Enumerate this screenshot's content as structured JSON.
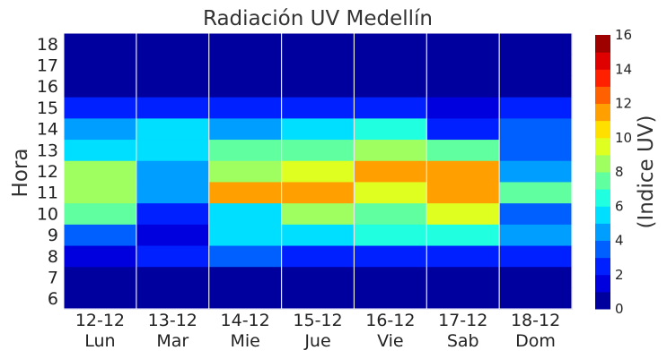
{
  "chart_data": {
    "type": "heatmap",
    "title": "Radiación UV Medellín",
    "ylabel": "Hora",
    "colorbar_label": "(Indice UV)",
    "colormap": "jet",
    "vmin": 0,
    "vmax": 16,
    "colorbar_levels": 16,
    "colorbar_ticks": [
      "0",
      "2",
      "4",
      "6",
      "8",
      "10",
      "12",
      "14",
      "16"
    ],
    "x_categories": [
      {
        "date": "12-12",
        "day": "Lun"
      },
      {
        "date": "13-12",
        "day": "Mar"
      },
      {
        "date": "14-12",
        "day": "Mie"
      },
      {
        "date": "15-12",
        "day": "Jue"
      },
      {
        "date": "16-12",
        "day": "Vie"
      },
      {
        "date": "17-12",
        "day": "Sab"
      },
      {
        "date": "18-12",
        "day": "Dom"
      }
    ],
    "y_ticks": [
      "6",
      "7",
      "8",
      "9",
      "10",
      "11",
      "12",
      "13",
      "14",
      "15",
      "16",
      "17",
      "18"
    ],
    "hours": [
      6,
      7,
      8,
      9,
      10,
      11,
      12,
      13,
      14,
      15,
      16,
      17,
      18
    ],
    "values": [
      [
        0.2,
        0.2,
        0.2,
        0.2,
        0.2,
        0.2,
        0.2
      ],
      [
        0.2,
        0.2,
        0.2,
        0.2,
        0.2,
        0.2,
        0.2
      ],
      [
        1.5,
        2.5,
        3.5,
        2.5,
        2.5,
        2.5,
        2.5
      ],
      [
        3.5,
        1.5,
        5.5,
        5.5,
        6.5,
        6.5,
        4.5
      ],
      [
        7.5,
        2.5,
        5.5,
        8.5,
        7.5,
        9.5,
        3.5
      ],
      [
        8.5,
        4.5,
        11.5,
        11.5,
        9.5,
        11.5,
        7.5
      ],
      [
        8.5,
        4.5,
        8.5,
        9.5,
        11.5,
        11.5,
        4.5
      ],
      [
        5.5,
        5.5,
        7.5,
        7.5,
        8.5,
        7.5,
        3.5
      ],
      [
        4.5,
        5.5,
        4.5,
        5.5,
        6.5,
        2.5,
        3.5
      ],
      [
        2.5,
        2.5,
        2.5,
        2.5,
        2.5,
        1.5,
        2.5
      ],
      [
        0.2,
        0.2,
        0.2,
        0.2,
        0.2,
        0.2,
        0.2
      ],
      [
        0.2,
        0.2,
        0.2,
        0.2,
        0.2,
        0.2,
        0.2
      ],
      [
        0.2,
        0.2,
        0.2,
        0.2,
        0.2,
        0.2,
        0.2
      ]
    ],
    "grid": false,
    "column_separators": true
  }
}
